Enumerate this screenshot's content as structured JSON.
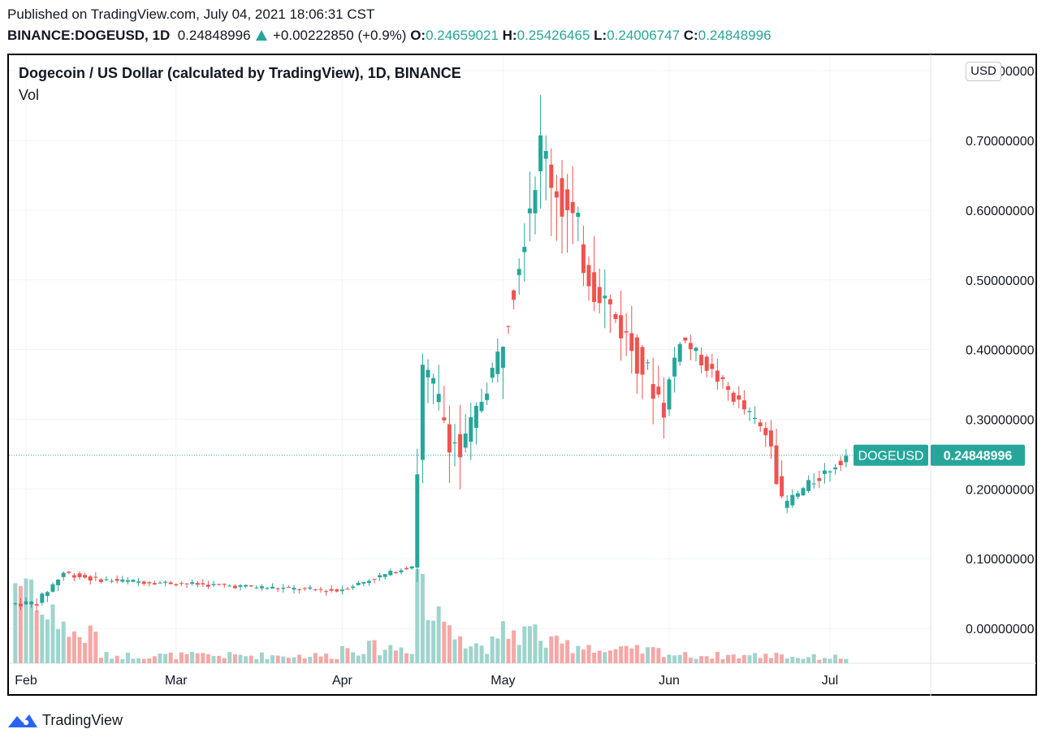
{
  "header": {
    "published": "Published on TradingView.com, July 04, 2021 18:06:31 CST",
    "symbol": "BINANCE:DOGEUSD, 1D",
    "last": "0.24848996",
    "change": "+0.00222850 (+0.9%)",
    "open_label": "O:",
    "open": "0.24659021",
    "high_label": "H:",
    "high": "0.25426465",
    "low_label": "L:",
    "low": "0.24006747",
    "close_label": "C:",
    "close": "0.24848996"
  },
  "chart_title": "Dogecoin / US Dollar (calculated by TradingView), 1D, BINANCE",
  "volume_label": "Vol",
  "currency_button": "USD",
  "price_tag": {
    "symbol": "DOGEUSD",
    "value": "0.24848996"
  },
  "footer": {
    "brand": "TradingView"
  },
  "colors": {
    "up": "#26a69a",
    "down": "#ef5350",
    "vol_up": "#9fd4cd",
    "vol_down": "#f4a8a6",
    "grid": "#f0f3fa",
    "tag_bg": "#26a69a"
  },
  "chart_data": {
    "type": "candlestick",
    "title": "Dogecoin / US Dollar (calculated by TradingView), 1D, BINANCE",
    "ylim": [
      -0.05,
      0.82
    ],
    "y_ticks": [
      0.0,
      0.1,
      0.2,
      0.3,
      0.4,
      0.5,
      0.6,
      0.7,
      0.8
    ],
    "y_tick_labels": [
      "0.00000000",
      "0.10000000",
      "0.20000000",
      "0.30000000",
      "0.40000000",
      "0.50000000",
      "0.60000000",
      "0.70000000",
      "0.80000000"
    ],
    "x_tick_labels": [
      {
        "label": "Feb",
        "date": "2021-02-01"
      },
      {
        "label": "Mar",
        "date": "2021-03-01"
      },
      {
        "label": "Apr",
        "date": "2021-04-01"
      },
      {
        "label": "May",
        "date": "2021-05-01"
      },
      {
        "label": "Jun",
        "date": "2021-06-01"
      },
      {
        "label": "Jul",
        "date": "2021-07-01"
      }
    ],
    "last_price": 0.24848996,
    "segments": [
      {
        "from": "2021-01-30",
        "to": "2021-02-03",
        "start": 0.035,
        "end": 0.037,
        "vol": 0.55,
        "noise": 0.006
      },
      {
        "from": "2021-02-04",
        "to": "2021-02-08",
        "start": 0.037,
        "end": 0.08,
        "vol": 0.3,
        "noise": 0.006
      },
      {
        "from": "2021-02-09",
        "to": "2021-02-14",
        "start": 0.08,
        "end": 0.07,
        "vol": 0.18,
        "noise": 0.005
      },
      {
        "from": "2021-02-15",
        "to": "2021-03-31",
        "start": 0.07,
        "end": 0.054,
        "vol": 0.05,
        "noise": 0.004
      },
      {
        "from": "2021-04-01",
        "to": "2021-04-14",
        "start": 0.054,
        "end": 0.09,
        "vol": 0.1,
        "noise": 0.004
      },
      {
        "from": "2021-04-15",
        "to": "2021-04-16",
        "start": 0.09,
        "end": 0.37,
        "vol": 0.6,
        "noise": 0.03
      },
      {
        "from": "2021-04-17",
        "to": "2021-04-23",
        "start": 0.37,
        "end": 0.25,
        "vol": 0.3,
        "noise": 0.04
      },
      {
        "from": "2021-04-24",
        "to": "2021-04-30",
        "start": 0.25,
        "end": 0.39,
        "vol": 0.12,
        "noise": 0.02
      },
      {
        "from": "2021-05-01",
        "to": "2021-05-08",
        "start": 0.39,
        "end": 0.69,
        "vol": 0.2,
        "noise": 0.04
      },
      {
        "from": "2021-05-09",
        "to": "2021-05-18",
        "start": 0.69,
        "end": 0.5,
        "vol": 0.12,
        "noise": 0.05
      },
      {
        "from": "2021-05-19",
        "to": "2021-05-31",
        "start": 0.5,
        "end": 0.32,
        "vol": 0.08,
        "noise": 0.03
      },
      {
        "from": "2021-06-01",
        "to": "2021-06-03",
        "start": 0.32,
        "end": 0.42,
        "vol": 0.06,
        "noise": 0.02
      },
      {
        "from": "2021-06-04",
        "to": "2021-06-20",
        "start": 0.42,
        "end": 0.27,
        "vol": 0.05,
        "noise": 0.012
      },
      {
        "from": "2021-06-21",
        "to": "2021-06-22",
        "start": 0.27,
        "end": 0.175,
        "vol": 0.07,
        "noise": 0.02
      },
      {
        "from": "2021-06-23",
        "to": "2021-07-04",
        "start": 0.175,
        "end": 0.248,
        "vol": 0.04,
        "noise": 0.01
      }
    ]
  }
}
